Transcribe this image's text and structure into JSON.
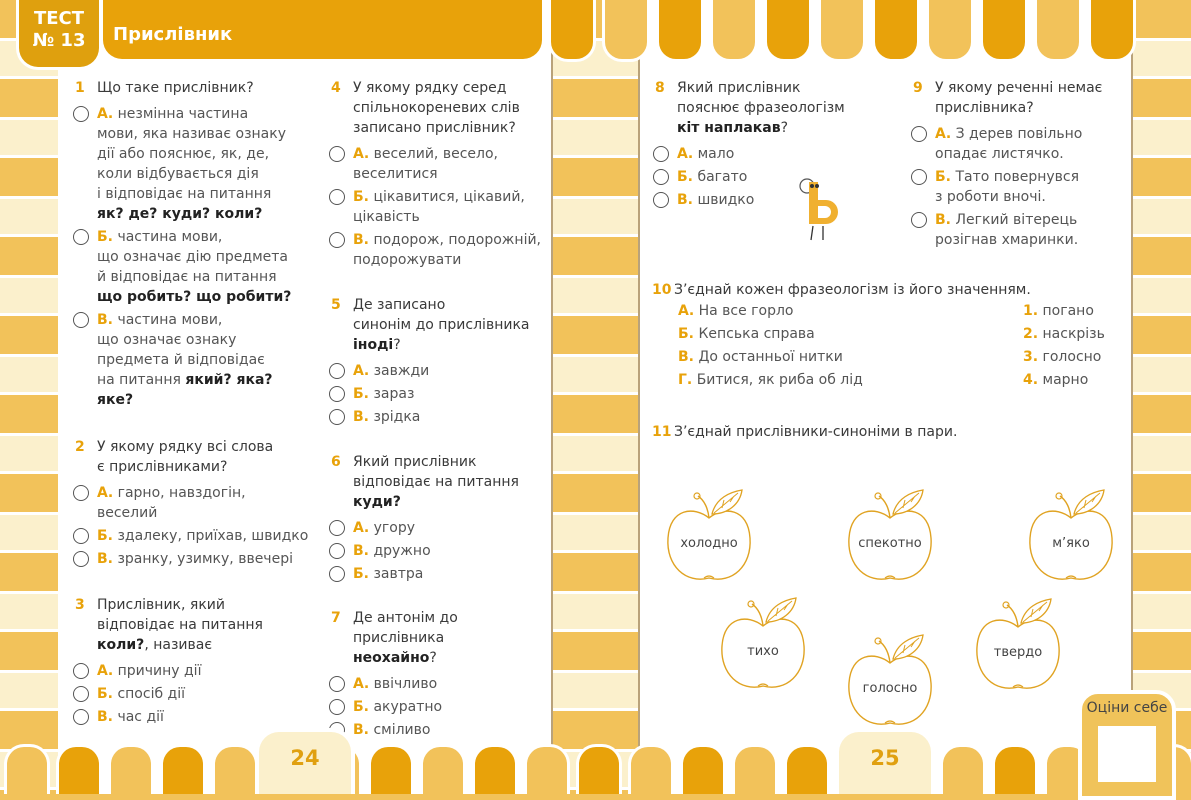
{
  "header": {
    "test_label": "ТЕСТ",
    "test_number": "№ 13",
    "title": "Прислівник"
  },
  "colors": {
    "accent": "#e8a20a",
    "light": "#f2c25a",
    "cream": "#fbf0cc"
  },
  "questions": [
    {
      "num": "1",
      "lines": [
        [
          {
            "t": "Що таке прислівник?"
          }
        ]
      ],
      "options": [
        {
          "letter": "А.",
          "lines": [
            [
              {
                "t": "незмінна частина"
              }
            ],
            [
              {
                "t": "мови, яка називає ознаку"
              }
            ],
            [
              {
                "t": "дії або пояснює, як, де,"
              }
            ],
            [
              {
                "t": "коли відбувається дія"
              }
            ],
            [
              {
                "t": "і відповідає на питання"
              }
            ],
            [
              {
                "t": "як? де? куди? коли?",
                "b": true
              }
            ]
          ]
        },
        {
          "letter": "Б.",
          "lines": [
            [
              {
                "t": "частина мови,"
              }
            ],
            [
              {
                "t": "що означає дію предмета"
              }
            ],
            [
              {
                "t": "й відповідає на питання"
              }
            ],
            [
              {
                "t": "що робить? що робити?",
                "b": true
              }
            ]
          ]
        },
        {
          "letter": "В.",
          "lines": [
            [
              {
                "t": "частина мови,"
              }
            ],
            [
              {
                "t": "що означає ознаку"
              }
            ],
            [
              {
                "t": "предмета й відповідає"
              }
            ],
            [
              {
                "t": "на питання "
              },
              {
                "t": "який? яка?",
                "b": true
              }
            ],
            [
              {
                "t": "яке?",
                "b": true
              }
            ]
          ]
        }
      ]
    },
    {
      "num": "2",
      "lines": [
        [
          {
            "t": "У якому рядку всі слова"
          }
        ],
        [
          {
            "t": "є прислівниками?"
          }
        ]
      ],
      "options": [
        {
          "letter": "А.",
          "lines": [
            [
              {
                "t": "гарно, навздогін,"
              }
            ],
            [
              {
                "t": "веселий"
              }
            ]
          ]
        },
        {
          "letter": "Б.",
          "lines": [
            [
              {
                "t": "здалеку, приїхав, швидко"
              }
            ]
          ]
        },
        {
          "letter": "В.",
          "lines": [
            [
              {
                "t": "зранку, узимку, ввечері"
              }
            ]
          ]
        }
      ]
    },
    {
      "num": "3",
      "lines": [
        [
          {
            "t": "Прислівник, який"
          }
        ],
        [
          {
            "t": "відповідає на питання"
          }
        ],
        [
          {
            "t": "коли?",
            "b": true
          },
          {
            "t": ", називає"
          }
        ]
      ],
      "options": [
        {
          "letter": "А.",
          "lines": [
            [
              {
                "t": "причину дії"
              }
            ]
          ]
        },
        {
          "letter": "Б.",
          "lines": [
            [
              {
                "t": "спосіб дії"
              }
            ]
          ]
        },
        {
          "letter": "В.",
          "lines": [
            [
              {
                "t": "час дії"
              }
            ]
          ]
        }
      ]
    },
    {
      "num": "4",
      "lines": [
        [
          {
            "t": "У якому рядку серед"
          }
        ],
        [
          {
            "t": "спільнокореневих слів"
          }
        ],
        [
          {
            "t": "записано прислівник?"
          }
        ]
      ],
      "options": [
        {
          "letter": "А.",
          "lines": [
            [
              {
                "t": "веселий, весело,"
              }
            ],
            [
              {
                "t": "веселитися"
              }
            ]
          ]
        },
        {
          "letter": "Б.",
          "lines": [
            [
              {
                "t": "цікавитися, цікавий,"
              }
            ],
            [
              {
                "t": "цікавість"
              }
            ]
          ]
        },
        {
          "letter": "В.",
          "lines": [
            [
              {
                "t": "подорож, подорожній,"
              }
            ],
            [
              {
                "t": "подорожувати"
              }
            ]
          ]
        }
      ]
    },
    {
      "num": "5",
      "lines": [
        [
          {
            "t": "Де записано"
          }
        ],
        [
          {
            "t": "синонім до прислівника"
          }
        ],
        [
          {
            "t": "іноді",
            "b": true
          },
          {
            "t": "?"
          }
        ]
      ],
      "options": [
        {
          "letter": "А.",
          "lines": [
            [
              {
                "t": "завжди"
              }
            ]
          ]
        },
        {
          "letter": "Б.",
          "lines": [
            [
              {
                "t": "зараз"
              }
            ]
          ]
        },
        {
          "letter": "В.",
          "lines": [
            [
              {
                "t": "зрідка"
              }
            ]
          ]
        }
      ]
    },
    {
      "num": "6",
      "lines": [
        [
          {
            "t": "Який прислівник"
          }
        ],
        [
          {
            "t": "відповідає на питання"
          }
        ],
        [
          {
            "t": "куди?",
            "b": true
          }
        ]
      ],
      "options": [
        {
          "letter": "А.",
          "lines": [
            [
              {
                "t": "угору"
              }
            ]
          ]
        },
        {
          "letter": "В.",
          "lines": [
            [
              {
                "t": "дружно"
              }
            ]
          ]
        },
        {
          "letter": "Б.",
          "lines": [
            [
              {
                "t": "завтра"
              }
            ]
          ]
        }
      ]
    },
    {
      "num": "7",
      "lines": [
        [
          {
            "t": "Де антонім до прислівника"
          }
        ],
        [
          {
            "t": "неохайно",
            "b": true
          },
          {
            "t": "?"
          }
        ]
      ],
      "options": [
        {
          "letter": "А.",
          "lines": [
            [
              {
                "t": "ввічливо"
              }
            ]
          ]
        },
        {
          "letter": "Б.",
          "lines": [
            [
              {
                "t": "акуратно"
              }
            ]
          ]
        },
        {
          "letter": "В.",
          "lines": [
            [
              {
                "t": "сміливо"
              }
            ]
          ]
        }
      ]
    },
    {
      "num": "8",
      "lines": [
        [
          {
            "t": "Який прислівник"
          }
        ],
        [
          {
            "t": "пояснює фразеологізм"
          }
        ],
        [
          {
            "t": "кіт наплакав",
            "b": true
          },
          {
            "t": "?"
          }
        ]
      ],
      "options": [
        {
          "letter": "А.",
          "lines": [
            [
              {
                "t": "мало"
              }
            ]
          ]
        },
        {
          "letter": "Б.",
          "lines": [
            [
              {
                "t": "багато"
              }
            ]
          ]
        },
        {
          "letter": "В.",
          "lines": [
            [
              {
                "t": "швидко"
              }
            ]
          ]
        }
      ]
    },
    {
      "num": "9",
      "lines": [
        [
          {
            "t": "У якому реченні немає"
          }
        ],
        [
          {
            "t": "прислівника?"
          }
        ]
      ],
      "options": [
        {
          "letter": "А.",
          "lines": [
            [
              {
                "t": "З дерев повільно"
              }
            ],
            [
              {
                "t": "опадає листячко."
              }
            ]
          ]
        },
        {
          "letter": "Б.",
          "lines": [
            [
              {
                "t": "Тато повернувся"
              }
            ],
            [
              {
                "t": "з роботи вночі."
              }
            ]
          ]
        },
        {
          "letter": "В.",
          "lines": [
            [
              {
                "t": "Легкий вітерець"
              }
            ],
            [
              {
                "t": "розігнав хмаринки."
              }
            ]
          ]
        }
      ]
    },
    {
      "num": "10",
      "lines": [
        [
          {
            "t": "З’єднай кожен фразеологізм із його значенням."
          }
        ]
      ],
      "options": []
    },
    {
      "num": "11",
      "lines": [
        [
          {
            "t": "З’єднай прислівники-синоніми в пари."
          }
        ]
      ],
      "options": []
    }
  ],
  "q10": {
    "left": [
      {
        "letter": "А.",
        "text": "На все горло"
      },
      {
        "letter": "Б.",
        "text": "Кепська справа"
      },
      {
        "letter": "В.",
        "text": "До останньої нитки"
      },
      {
        "letter": "Г.",
        "text": "Битися, як риба об лід"
      }
    ],
    "right": [
      {
        "letter": "1.",
        "text": "погано"
      },
      {
        "letter": "2.",
        "text": "наскрізь"
      },
      {
        "letter": "3.",
        "text": "голосно"
      },
      {
        "letter": "4.",
        "text": "марно"
      }
    ]
  },
  "apples": [
    "холодно",
    "спекотно",
    "м’яко",
    "тихо",
    "голосно",
    "твердо"
  ],
  "mascot_icon": "soft-sign-letter-character",
  "footer": {
    "page_left": "24",
    "page_right": "25",
    "rate_label": "Оціни себе"
  }
}
